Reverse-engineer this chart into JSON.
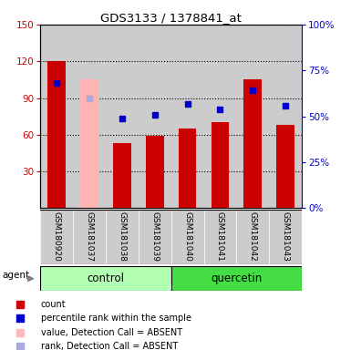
{
  "title": "GDS3133 / 1378841_at",
  "samples": [
    "GSM180920",
    "GSM181037",
    "GSM181038",
    "GSM181039",
    "GSM181040",
    "GSM181041",
    "GSM181042",
    "GSM181043"
  ],
  "bar_values": [
    120,
    105,
    53,
    59,
    65,
    70,
    105,
    68
  ],
  "bar_colors": [
    "#cc0000",
    "#ffb3b3",
    "#cc0000",
    "#cc0000",
    "#cc0000",
    "#cc0000",
    "#cc0000",
    "#cc0000"
  ],
  "rank_values": [
    68,
    60,
    49,
    51,
    57,
    54,
    64,
    56
  ],
  "rank_colors": [
    "#0000cc",
    "#aaaadd",
    "#0000cc",
    "#0000cc",
    "#0000cc",
    "#0000cc",
    "#0000cc",
    "#0000cc"
  ],
  "absent_flags": [
    false,
    true,
    false,
    false,
    false,
    false,
    false,
    false
  ],
  "ylim_left": [
    0,
    150
  ],
  "ylim_right": [
    0,
    100
  ],
  "yticks_left": [
    30,
    60,
    90,
    120,
    150
  ],
  "yticks_right": [
    0,
    25,
    50,
    75,
    100
  ],
  "ytick_labels_right": [
    "0%",
    "25%",
    "50%",
    "75%",
    "100%"
  ],
  "group_labels": [
    "control",
    "quercetin"
  ],
  "group_colors": [
    "#b3ffb3",
    "#44dd44"
  ],
  "agent_label": "agent",
  "legend_items": [
    {
      "label": "count",
      "color": "#cc0000"
    },
    {
      "label": "percentile rank within the sample",
      "color": "#0000cc"
    },
    {
      "label": "value, Detection Call = ABSENT",
      "color": "#ffbbbb"
    },
    {
      "label": "rank, Detection Call = ABSENT",
      "color": "#aaaadd"
    }
  ],
  "bar_width": 0.55,
  "rank_marker_size": 5,
  "left_tick_color": "#cc0000",
  "right_tick_color": "#0000cc",
  "col_bg_color": "#cccccc"
}
